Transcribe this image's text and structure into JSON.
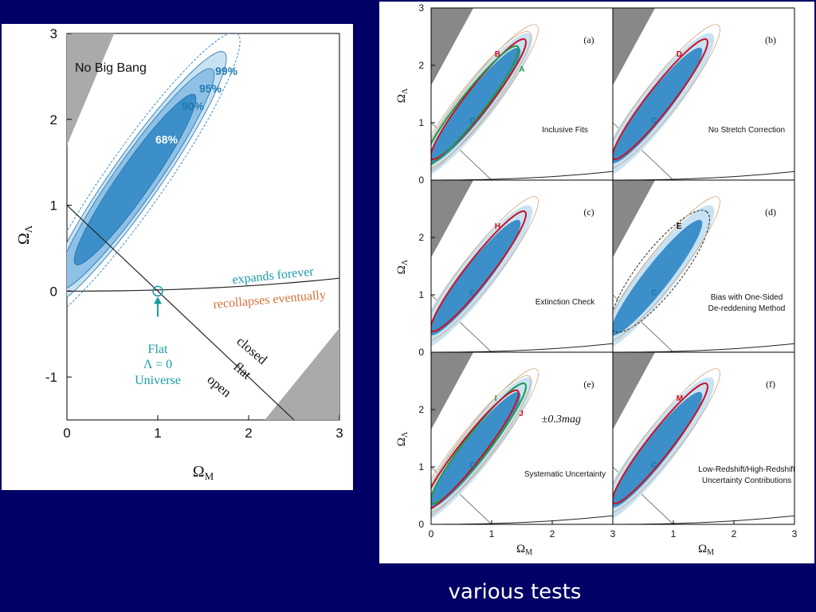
{
  "caption": "various tests",
  "colors": {
    "background": "#000066",
    "no_big_bang": "#aaaaaa",
    "contour_inner": "#3d8fc9",
    "contour_middle": "#8fc1e6",
    "contour_outer": "#c8e2f3",
    "contour_dashed": "#3d8fc9",
    "red_contour": "#cc1122",
    "green_contour": "#229944",
    "brown_contour": "#cc9966",
    "teal_text": "#1a9aa8",
    "orange_text": "#d9703a"
  },
  "chart_data": [
    {
      "type": "contour",
      "id": "main",
      "xlabel": "Ω_M",
      "ylabel": "Ω_Λ",
      "xlim": [
        0,
        3
      ],
      "ylim": [
        -1.5,
        3
      ],
      "xticks": [
        "0",
        "1",
        "2",
        "3"
      ],
      "yticks": [
        "-1",
        "0",
        "1",
        "2",
        "3"
      ],
      "region_label": "No Big Bang",
      "contour_levels": [
        "68%",
        "90%",
        "95%",
        "99%"
      ],
      "best_fit_ellipse": {
        "center": [
          0.75,
          1.3
        ],
        "angle_deg": 55,
        "semi_major_68": 1.2,
        "semi_minor_68": 0.17
      },
      "lines": {
        "flat_line": {
          "from": [
            0,
            1
          ],
          "to": [
            2.5,
            -1.5
          ]
        },
        "expansion_boundary": "0 → 0.15 at Ω_M = 3"
      },
      "annotations": {
        "expands": "expands forever",
        "recollapses": "recollapses eventually",
        "closed": "closed",
        "flat": "flat",
        "open": "open",
        "flat_universe_line1": "Flat",
        "flat_universe_line2": "Λ = 0",
        "flat_universe_line3": "Universe",
        "marker_point": [
          1,
          0
        ]
      }
    },
    {
      "type": "contour-grid",
      "id": "tests",
      "xlabel": "Ω_M",
      "ylabel": "Ω_Λ",
      "xlim": [
        0,
        3
      ],
      "ylim": [
        0,
        3
      ],
      "xticks": [
        "0",
        "1",
        "2",
        "3"
      ],
      "yticks": [
        "0",
        "1",
        "2",
        "3"
      ],
      "panels": [
        {
          "tag": "(a)",
          "title": "Inclusive Fits",
          "center_label": "C",
          "fits": [
            {
              "label": "B",
              "color": "red"
            },
            {
              "label": "A",
              "color": "green"
            }
          ]
        },
        {
          "tag": "(b)",
          "title": "No Stretch Correction",
          "center_label": "C",
          "fits": [
            {
              "label": "D",
              "color": "red"
            }
          ]
        },
        {
          "tag": "(c)",
          "title": "Extinction Check",
          "center_label": "C",
          "fits": [
            {
              "label": "H",
              "color": "red"
            }
          ]
        },
        {
          "tag": "(d)",
          "title_line1": "Bias with One-Sided",
          "title_line2": "De-reddening Method",
          "center_label": "C",
          "fits": [
            {
              "label": "E",
              "color": "dashed"
            }
          ]
        },
        {
          "tag": "(e)",
          "title": "Systematic Uncertainty",
          "center_label": "C",
          "extra": "±0.3mag",
          "fits": [
            {
              "label": "I",
              "color": "green"
            },
            {
              "label": "J",
              "color": "red"
            }
          ]
        },
        {
          "tag": "(f)",
          "title_line1": "Low-Redshift/High-Redshift",
          "title_line2": "Uncertainty Contributions",
          "center_label": "C",
          "fits": [
            {
              "label": "M",
              "color": "red"
            }
          ]
        }
      ]
    }
  ]
}
